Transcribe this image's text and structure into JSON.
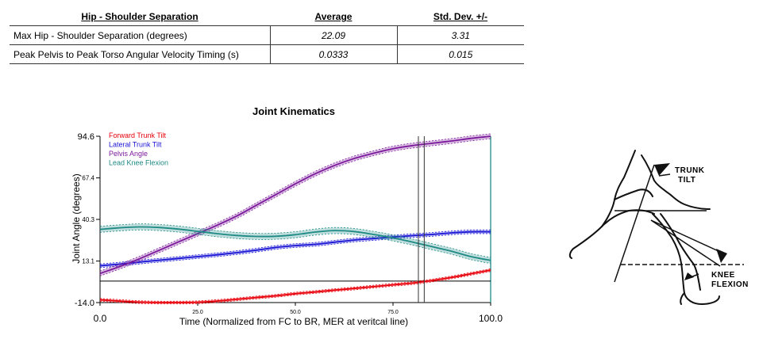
{
  "table": {
    "headers": [
      "Hip - Shoulder Separation",
      "Average",
      "Std. Dev. +/-"
    ],
    "rows": [
      {
        "metric": "Max Hip - Shoulder Separation (degrees)",
        "average": "22.09",
        "std_dev": "3.31"
      },
      {
        "metric": "Peak Pelvis to Peak Torso Angular Velocity Timing (s)",
        "average": "0.0333",
        "std_dev": "0.015"
      }
    ]
  },
  "chart_data": {
    "type": "line",
    "title": "Joint Kinematics",
    "xlabel": "Time (Normalized from FC to BR, MER at veritcal line)",
    "ylabel": "Joint Angle (degrees)",
    "xlim": [
      0,
      100
    ],
    "ylim": [
      -14.0,
      94.6
    ],
    "y_ticks": [
      {
        "value": 94.6,
        "label": "94.6",
        "size": "large"
      },
      {
        "value": 67.4,
        "label": "67.4",
        "size": "small"
      },
      {
        "value": 40.3,
        "label": "40.3",
        "size": "small"
      },
      {
        "value": 13.1,
        "label": "13.1",
        "size": "small"
      },
      {
        "value": -14.0,
        "label": "-14.0",
        "size": "large"
      }
    ],
    "x_ticks": [
      {
        "value": 0,
        "label": "0.0",
        "size": "large"
      },
      {
        "value": 25,
        "label": "25.0",
        "size": "small"
      },
      {
        "value": 50,
        "label": "50.0",
        "size": "small"
      },
      {
        "value": 75,
        "label": "75.0",
        "size": "small"
      },
      {
        "value": 100,
        "label": "100.0",
        "size": "large"
      }
    ],
    "zero_line": 0,
    "mer_lines": [
      81.5,
      83.0
    ],
    "legend_position": "top-left",
    "series": [
      {
        "name": "Forward Trunk Tilt",
        "color": "#e8000b",
        "x": [
          0,
          5,
          10,
          15,
          20,
          25,
          30,
          35,
          40,
          45,
          50,
          55,
          60,
          65,
          70,
          75,
          80,
          85,
          90,
          95,
          100
        ],
        "y": [
          -12.2,
          -13.0,
          -13.7,
          -14.0,
          -14.0,
          -13.8,
          -13.0,
          -11.9,
          -10.7,
          -9.6,
          -8.2,
          -7.1,
          -5.9,
          -4.8,
          -3.6,
          -2.4,
          -1.3,
          0.4,
          2.4,
          4.8,
          7.2
        ],
        "band": 0.9
      },
      {
        "name": "Lateral Trunk Tilt",
        "color": "#1a14d4",
        "x": [
          0,
          5,
          10,
          15,
          20,
          25,
          30,
          35,
          40,
          45,
          50,
          55,
          60,
          65,
          70,
          75,
          80,
          85,
          90,
          95,
          100
        ],
        "y": [
          10.0,
          11.1,
          12.4,
          13.6,
          14.8,
          16.0,
          17.2,
          18.6,
          20.2,
          22.0,
          23.2,
          24.0,
          25.4,
          26.8,
          27.8,
          28.8,
          29.7,
          30.5,
          31.5,
          32.2,
          32.2
        ],
        "band": 1.2
      },
      {
        "name": "Pelvis Angle",
        "color": "#7b1a9a",
        "x": [
          0,
          5,
          10,
          15,
          20,
          25,
          30,
          35,
          40,
          45,
          50,
          55,
          60,
          65,
          70,
          75,
          80,
          85,
          90,
          95,
          100
        ],
        "y": [
          5.0,
          9.5,
          14.5,
          20.0,
          25.5,
          31.0,
          36.5,
          42.5,
          49.5,
          56.5,
          63.5,
          70.0,
          75.5,
          80.0,
          83.5,
          86.5,
          88.5,
          90.0,
          91.5,
          93.2,
          94.6
        ],
        "band": 1.6
      },
      {
        "name": "Lead Knee Flexion",
        "color": "#1e8a84",
        "x": [
          0,
          5,
          10,
          15,
          20,
          25,
          30,
          35,
          40,
          45,
          50,
          55,
          60,
          65,
          70,
          75,
          80,
          85,
          90,
          95,
          100
        ],
        "y": [
          33.8,
          34.8,
          35.4,
          35.0,
          34.0,
          32.5,
          31.0,
          29.8,
          29.2,
          29.3,
          30.3,
          32.0,
          33.0,
          32.4,
          30.5,
          28.2,
          25.5,
          22.5,
          19.5,
          16.0,
          13.5
        ],
        "band": 2.0
      }
    ]
  },
  "figure": {
    "labels": [
      {
        "line1": "TRUNK",
        "line2": "TILT"
      },
      {
        "line1": "KNEE",
        "line2": "FLEXION"
      }
    ]
  }
}
